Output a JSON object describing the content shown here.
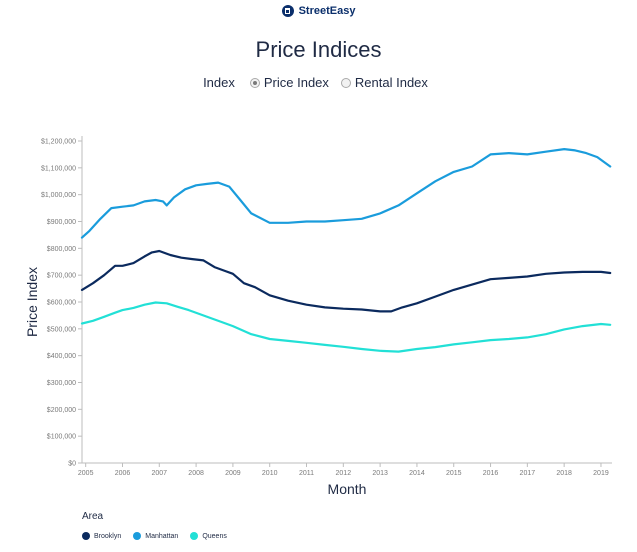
{
  "brand": {
    "name": "StreetEasy",
    "icon": "streeteasy-logo-icon"
  },
  "header": {
    "title": "Price Indices"
  },
  "index_toggle": {
    "label": "Index",
    "options": [
      {
        "label": "Price Index",
        "selected": true
      },
      {
        "label": "Rental Index",
        "selected": false
      }
    ]
  },
  "legend": {
    "title": "Area"
  },
  "colors": {
    "Brooklyn": "#0b2a5e",
    "Manhattan": "#1a9cdc",
    "Queens": "#22e0d6"
  },
  "chart_data": {
    "type": "line",
    "title": "Price Indices",
    "xlabel": "Month",
    "ylabel": "Price Index",
    "xlim": [
      2004.9,
      2019.3
    ],
    "ylim": [
      0,
      1200000
    ],
    "x_ticks": [
      2005,
      2006,
      2007,
      2008,
      2009,
      2010,
      2011,
      2012,
      2013,
      2014,
      2015,
      2016,
      2017,
      2018,
      2019
    ],
    "y_ticks": [
      0,
      100000,
      200000,
      300000,
      400000,
      500000,
      600000,
      700000,
      800000,
      900000,
      1000000,
      1100000,
      1200000
    ],
    "y_tick_labels": [
      "$0",
      "$100,000",
      "$200,000",
      "$300,000",
      "$400,000",
      "$500,000",
      "$600,000",
      "$700,000",
      "$800,000",
      "$900,000",
      "$1,000,000",
      "$1,100,000",
      "$1,200,000"
    ],
    "grid": false,
    "legend_position": "bottom-left",
    "series": [
      {
        "name": "Brooklyn",
        "x": [
          2004.9,
          2005.2,
          2005.5,
          2005.8,
          2006.0,
          2006.3,
          2006.6,
          2006.8,
          2007.0,
          2007.3,
          2007.6,
          2007.9,
          2008.2,
          2008.5,
          2008.8,
          2009.0,
          2009.3,
          2009.6,
          2010.0,
          2010.5,
          2011.0,
          2011.5,
          2012.0,
          2012.5,
          2013.0,
          2013.3,
          2013.6,
          2014.0,
          2014.5,
          2015.0,
          2015.5,
          2016.0,
          2016.5,
          2017.0,
          2017.5,
          2018.0,
          2018.5,
          2019.0,
          2019.25
        ],
        "values": [
          645000,
          670000,
          700000,
          735000,
          735000,
          745000,
          770000,
          785000,
          790000,
          775000,
          765000,
          760000,
          755000,
          730000,
          715000,
          705000,
          670000,
          655000,
          625000,
          605000,
          590000,
          580000,
          575000,
          572000,
          565000,
          565000,
          580000,
          595000,
          620000,
          645000,
          665000,
          685000,
          690000,
          695000,
          705000,
          710000,
          712000,
          712000,
          708000
        ]
      },
      {
        "name": "Manhattan",
        "x": [
          2004.9,
          2005.1,
          2005.4,
          2005.7,
          2006.0,
          2006.3,
          2006.6,
          2006.9,
          2007.1,
          2007.2,
          2007.4,
          2007.7,
          2008.0,
          2008.3,
          2008.6,
          2008.9,
          2009.2,
          2009.5,
          2010.0,
          2010.5,
          2011.0,
          2011.5,
          2012.0,
          2012.5,
          2013.0,
          2013.5,
          2014.0,
          2014.5,
          2015.0,
          2015.5,
          2016.0,
          2016.5,
          2017.0,
          2017.5,
          2018.0,
          2018.3,
          2018.6,
          2018.9,
          2019.25
        ],
        "values": [
          840000,
          865000,
          910000,
          950000,
          955000,
          960000,
          975000,
          980000,
          975000,
          960000,
          990000,
          1020000,
          1035000,
          1040000,
          1045000,
          1030000,
          980000,
          930000,
          895000,
          895000,
          900000,
          900000,
          905000,
          910000,
          930000,
          960000,
          1005000,
          1050000,
          1085000,
          1105000,
          1150000,
          1155000,
          1150000,
          1160000,
          1170000,
          1165000,
          1155000,
          1140000,
          1105000
        ]
      },
      {
        "name": "Queens",
        "x": [
          2004.9,
          2005.2,
          2005.5,
          2005.8,
          2006.0,
          2006.3,
          2006.6,
          2006.9,
          2007.2,
          2007.5,
          2007.8,
          2008.1,
          2008.4,
          2008.7,
          2009.0,
          2009.5,
          2010.0,
          2010.5,
          2011.0,
          2011.5,
          2012.0,
          2012.5,
          2013.0,
          2013.5,
          2014.0,
          2014.5,
          2015.0,
          2015.5,
          2016.0,
          2016.5,
          2017.0,
          2017.5,
          2018.0,
          2018.5,
          2019.0,
          2019.25
        ],
        "values": [
          520000,
          530000,
          545000,
          560000,
          570000,
          578000,
          590000,
          598000,
          595000,
          582000,
          570000,
          555000,
          540000,
          525000,
          510000,
          480000,
          462000,
          455000,
          448000,
          440000,
          433000,
          425000,
          418000,
          415000,
          425000,
          432000,
          442000,
          450000,
          458000,
          462000,
          468000,
          480000,
          498000,
          510000,
          518000,
          515000
        ]
      }
    ]
  }
}
